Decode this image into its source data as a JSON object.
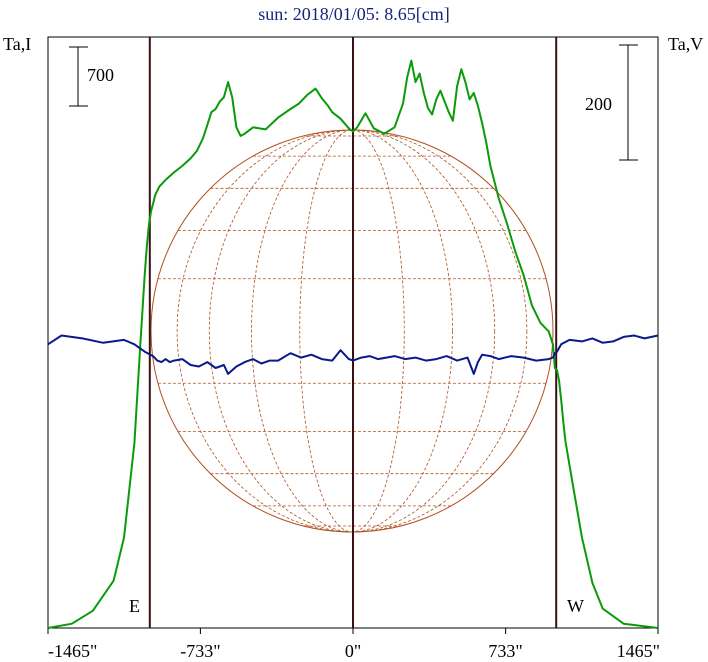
{
  "chart_data": {
    "type": "line",
    "title": "sun: 2018/01/05: 8.65[cm]",
    "left_axis_label": "Ta,I",
    "right_axis_label": "Ta,V",
    "left_scale_bar_label": "700",
    "right_scale_bar_label": "200",
    "limb_labels": {
      "east": "E",
      "west": "W"
    },
    "x_tick_labels": [
      "-1465\"",
      "-733\"",
      "0\"",
      "733\"",
      "1465\""
    ],
    "x_ticks": [
      -1465,
      -733,
      0,
      733,
      1465
    ],
    "xlim": [
      -1465,
      1465
    ],
    "solar_limb_x": [
      -976,
      976
    ],
    "grid": false,
    "colors": {
      "stokes_i": "#0a9a0a",
      "stokes_v": "#0a1a8c",
      "limb_lines": "#3a1010",
      "sun_grid": "#b05020",
      "title": "#1a237e"
    },
    "series": [
      {
        "key": "stokes_i",
        "ylim": [
          0,
          2750
        ],
        "x": [
          -1465,
          -1350,
          -1250,
          -1150,
          -1100,
          -1050,
          -1020,
          -1000,
          -990,
          -980,
          -970,
          -960,
          -950,
          -930,
          -900,
          -860,
          -820,
          -780,
          -750,
          -720,
          -700,
          -680,
          -660,
          -640,
          -620,
          -600,
          -580,
          -560,
          -540,
          -520,
          -480,
          -420,
          -360,
          -300,
          -260,
          -220,
          -180,
          -150,
          -120,
          -100,
          -60,
          -20,
          0,
          20,
          60,
          100,
          150,
          200,
          240,
          260,
          280,
          300,
          320,
          340,
          360,
          380,
          400,
          420,
          440,
          460,
          480,
          500,
          520,
          540,
          560,
          580,
          600,
          620,
          640,
          660,
          700,
          740,
          780,
          820,
          860,
          900,
          940,
          960,
          970,
          980,
          990,
          1000,
          1010,
          1020,
          1050,
          1100,
          1150,
          1200,
          1300,
          1465
        ],
        "values": [
          0,
          20,
          80,
          220,
          420,
          860,
          1340,
          1650,
          1780,
          1880,
          1940,
          1975,
          2015,
          2055,
          2085,
          2120,
          2150,
          2185,
          2220,
          2280,
          2340,
          2400,
          2415,
          2450,
          2470,
          2540,
          2470,
          2330,
          2290,
          2300,
          2330,
          2320,
          2375,
          2415,
          2440,
          2480,
          2510,
          2465,
          2430,
          2400,
          2370,
          2325,
          2310,
          2330,
          2395,
          2325,
          2300,
          2330,
          2440,
          2560,
          2640,
          2540,
          2580,
          2490,
          2420,
          2390,
          2460,
          2500,
          2450,
          2400,
          2360,
          2520,
          2600,
          2540,
          2460,
          2490,
          2430,
          2350,
          2260,
          2150,
          2000,
          1880,
          1750,
          1640,
          1500,
          1420,
          1380,
          1320,
          1210,
          1200,
          1150,
          1060,
          960,
          870,
          700,
          420,
          210,
          90,
          20,
          0
        ]
      },
      {
        "key": "stokes_v",
        "ylim": [
          -1000,
          1000
        ],
        "x": [
          -1465,
          -1400,
          -1300,
          -1200,
          -1100,
          -1050,
          -1000,
          -960,
          -940,
          -920,
          -900,
          -880,
          -860,
          -820,
          -780,
          -740,
          -700,
          -660,
          -620,
          -600,
          -560,
          -520,
          -480,
          -440,
          -400,
          -360,
          -300,
          -250,
          -200,
          -150,
          -100,
          -60,
          -20,
          0,
          40,
          80,
          120,
          160,
          200,
          250,
          300,
          350,
          400,
          450,
          500,
          550,
          580,
          600,
          620,
          660,
          700,
          760,
          820,
          880,
          940,
          960,
          970,
          980,
          1000,
          1040,
          1100,
          1150,
          1200,
          1250,
          1300,
          1350,
          1400,
          1465
        ],
        "values": [
          -40,
          -10,
          -20,
          -35,
          -25,
          -40,
          -65,
          -80,
          -95,
          -100,
          -90,
          -100,
          -95,
          -90,
          -110,
          -115,
          -100,
          -120,
          -110,
          -140,
          -115,
          -100,
          -90,
          -105,
          -95,
          -95,
          -70,
          -85,
          -75,
          -90,
          -95,
          -60,
          -90,
          -95,
          -85,
          -80,
          -90,
          -85,
          -80,
          -90,
          -85,
          -95,
          -90,
          -80,
          -95,
          -85,
          -140,
          -100,
          -75,
          -80,
          -90,
          -80,
          -85,
          -95,
          -90,
          -85,
          -70,
          -65,
          -40,
          -25,
          -30,
          -20,
          -35,
          -30,
          -15,
          -10,
          -20,
          -10
        ]
      }
    ]
  }
}
